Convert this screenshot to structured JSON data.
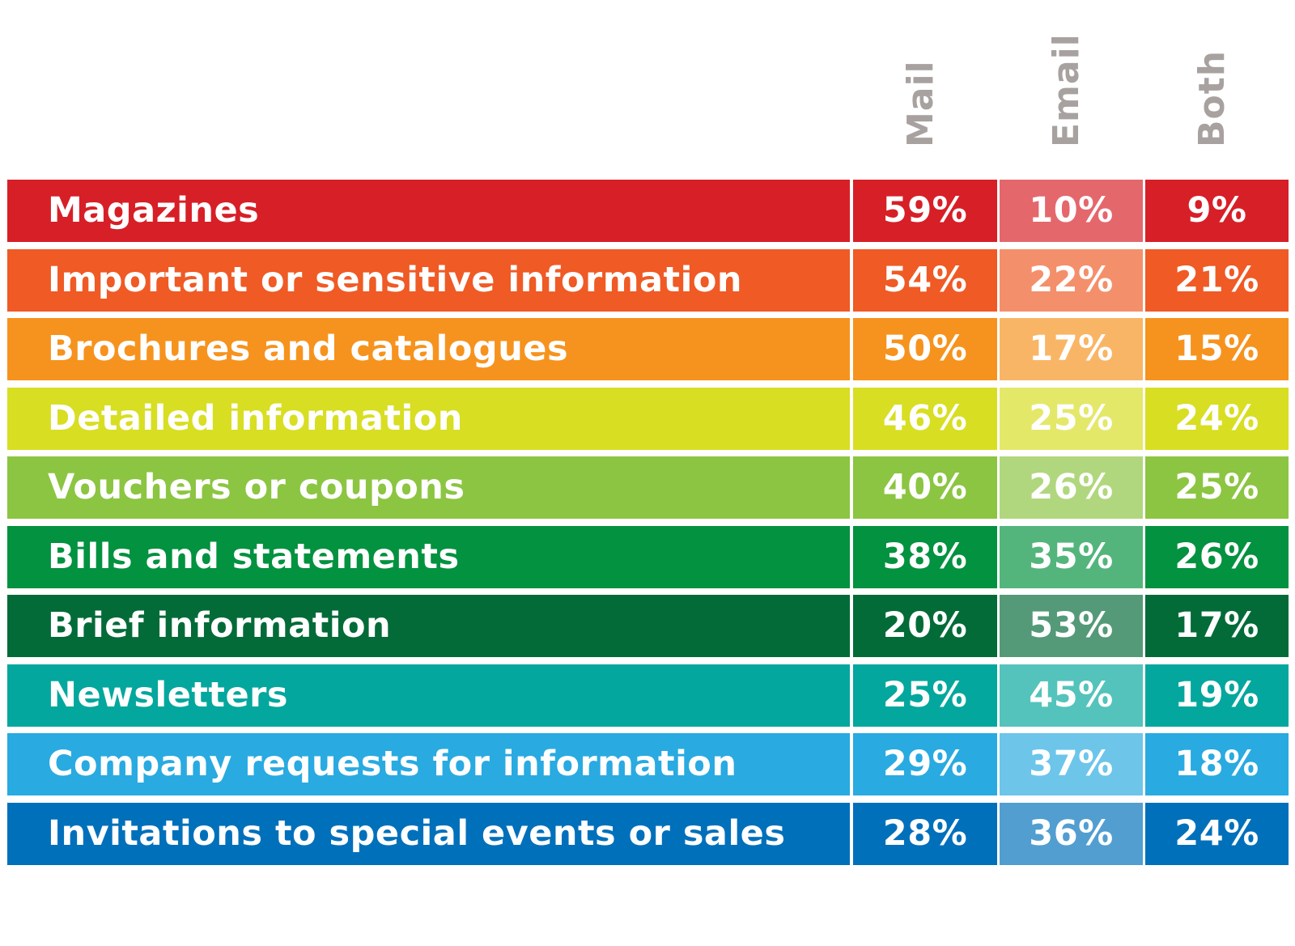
{
  "chart_data": {
    "type": "table",
    "columns": [
      "Mail",
      "Email",
      "Both"
    ],
    "rows": [
      {
        "label": "Magazines",
        "color": "#d71f27",
        "values": [
          "59%",
          "10%",
          "9%"
        ]
      },
      {
        "label": "Important or sensitive information",
        "color": "#ef5a25",
        "values": [
          "54%",
          "22%",
          "21%"
        ]
      },
      {
        "label": "Brochures and catalogues",
        "color": "#f6931e",
        "values": [
          "50%",
          "17%",
          "15%"
        ]
      },
      {
        "label": "Detailed information",
        "color": "#d8de22",
        "values": [
          "46%",
          "25%",
          "24%"
        ]
      },
      {
        "label": "Vouchers or coupons",
        "color": "#8cc542",
        "values": [
          "40%",
          "26%",
          "25%"
        ]
      },
      {
        "label": "Bills and statements",
        "color": "#03923f",
        "values": [
          "38%",
          "35%",
          "26%"
        ]
      },
      {
        "label": "Brief information",
        "color": "#036b38",
        "values": [
          "20%",
          "53%",
          "17%"
        ]
      },
      {
        "label": "Newsletters",
        "color": "#03a79d",
        "values": [
          "25%",
          "45%",
          "19%"
        ]
      },
      {
        "label": "Company requests for information",
        "color": "#29aae1",
        "values": [
          "29%",
          "37%",
          "18%"
        ]
      },
      {
        "label": "Invitations to special events or sales",
        "color": "#0170bb",
        "values": [
          "28%",
          "36%",
          "24%"
        ]
      }
    ]
  }
}
